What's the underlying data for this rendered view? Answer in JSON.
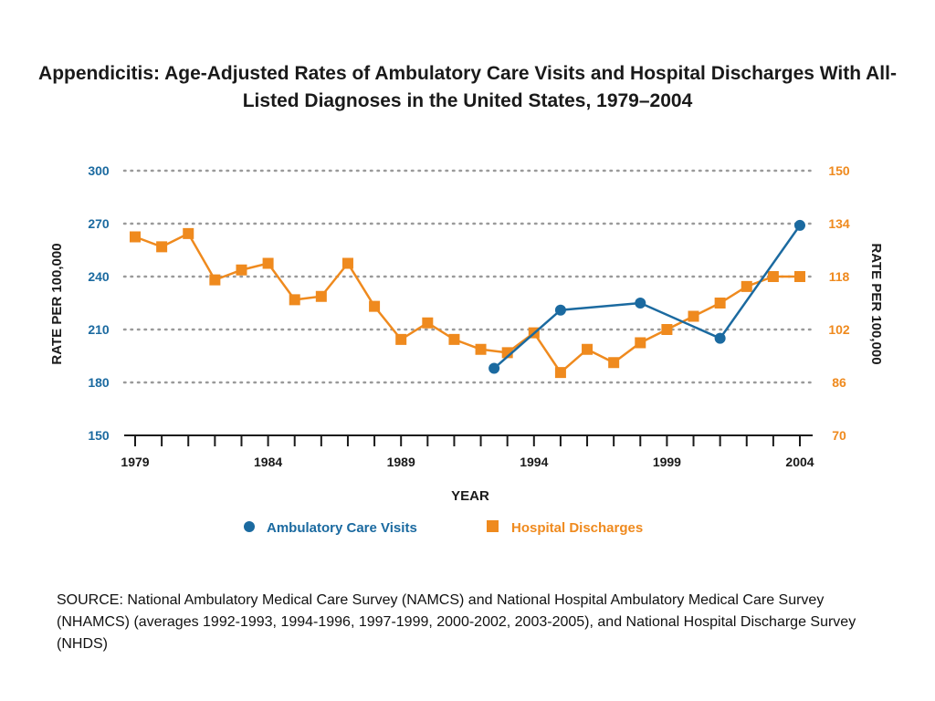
{
  "title": "Appendicitis:  Age-Adjusted Rates of Ambulatory Care Visits and Hospital Discharges With All-Listed Diagnoses in the United States, 1979–2004",
  "source": "SOURCE: National Ambulatory Medical Care Survey (NAMCS) and National Hospital Ambulatory Medical Care Survey (NHAMCS) (averages 1992-1993, 1994-1996, 1997-1999, 2000-2002, 2003-2005), and National Hospital Discharge Survey (NHDS)",
  "colors": {
    "ambulatory": "#1b6aa0",
    "hospital": "#ef8a1e",
    "axis": "#1a1a1a",
    "grid": "#9a9a9a"
  },
  "chart_data": {
    "type": "line",
    "xlabel": "YEAR",
    "ylabel_left": "RATE PER 100,000",
    "ylabel_right": "RATE PER 100,000",
    "xlim": [
      1979,
      2004
    ],
    "x_ticks": [
      "1979",
      "1984",
      "1989",
      "1994",
      "1999",
      "2004"
    ],
    "y_left_lim": [
      150,
      300
    ],
    "y_left_ticks": [
      "150",
      "180",
      "210",
      "240",
      "270",
      "300"
    ],
    "y_right_lim": [
      70,
      150
    ],
    "y_right_ticks": [
      "70",
      "86",
      "102",
      "118",
      "134",
      "150"
    ],
    "grid": "horizontal dotted",
    "legend_position": "bottom",
    "series": [
      {
        "name": "Ambulatory Care Visits",
        "axis": "left",
        "marker": "circle",
        "x": [
          1992.5,
          1995,
          1998,
          2001,
          2004
        ],
        "y": [
          188,
          221,
          225,
          205,
          269
        ]
      },
      {
        "name": "Hospital Discharges",
        "axis": "right",
        "marker": "square",
        "x": [
          1979,
          1980,
          1981,
          1982,
          1983,
          1984,
          1985,
          1986,
          1987,
          1988,
          1989,
          1990,
          1991,
          1992,
          1993,
          1994,
          1995,
          1996,
          1997,
          1998,
          1999,
          2000,
          2001,
          2002,
          2003,
          2004
        ],
        "y": [
          130,
          127,
          131,
          117,
          120,
          122,
          111,
          112,
          122,
          109,
          99,
          104,
          99,
          96,
          95,
          101,
          89,
          96,
          92,
          98,
          102,
          106,
          110,
          115,
          118,
          118
        ]
      }
    ]
  }
}
